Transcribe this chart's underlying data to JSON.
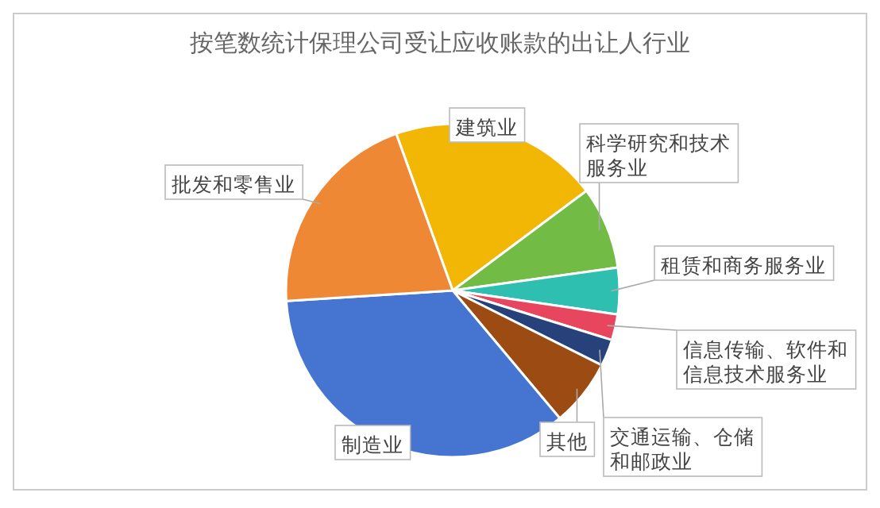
{
  "chart_data": {
    "type": "pie",
    "title": "按笔数统计保理公司受让应收账款的出让人行业",
    "categories": [
      "建筑业",
      "科学研究和技术服务业",
      "租赁和商务服务业",
      "信息传输、软件和信息技术服务业",
      "交通运输、仓储和邮政业",
      "其他",
      "制造业",
      "批发和零售业"
    ],
    "values": [
      20.3,
      8.0,
      4.5,
      2.5,
      2.6,
      6.5,
      35.1,
      20.5
    ],
    "colors": [
      "#f2b705",
      "#72bb45",
      "#2ebfb0",
      "#e8455e",
      "#27417a",
      "#9c4c12",
      "#4674d1",
      "#ef8834"
    ]
  }
}
